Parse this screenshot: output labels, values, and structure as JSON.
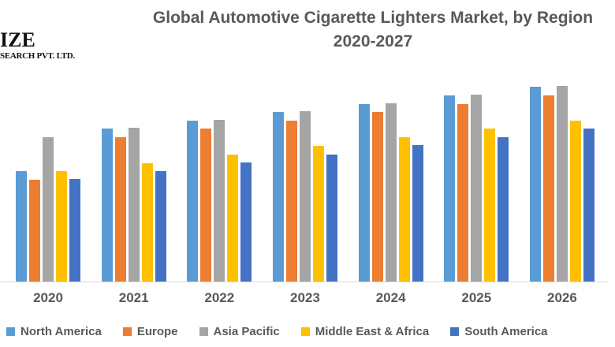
{
  "logo": {
    "line1": "IZE",
    "line2": "SEARCH PVT. LTD."
  },
  "title": {
    "line1": "Global Automotive Cigarette Lighters Market, by Region",
    "line2": "2020-2027",
    "color": "#595959"
  },
  "axis": {
    "line_color": "#d9d9d9",
    "label_color": "#595959"
  },
  "chart_data": {
    "type": "bar",
    "title": "Global Automotive Cigarette Lighters Market, by Region 2020-2027",
    "xlabel": "",
    "ylabel": "",
    "categories": [
      "2020",
      "2021",
      "2022",
      "2023",
      "2024",
      "2025",
      "2026"
    ],
    "series": [
      {
        "name": "North America",
        "color": "#5B9BD5",
        "values": [
          140,
          194,
          204,
          215,
          225,
          236,
          247
        ]
      },
      {
        "name": "Europe",
        "color": "#ED7D31",
        "values": [
          129,
          183,
          194,
          204,
          215,
          225,
          236
        ]
      },
      {
        "name": "Asia Pacific",
        "color": "#A5A5A5",
        "values": [
          183,
          195,
          205,
          216,
          226,
          237,
          248
        ]
      },
      {
        "name": "Middle East & Africa",
        "color": "#FFC000",
        "values": [
          140,
          150,
          161,
          172,
          183,
          194,
          204
        ]
      },
      {
        "name": "South America",
        "color": "#4472C4",
        "values": [
          130,
          140,
          151,
          161,
          173,
          183,
          194
        ]
      }
    ],
    "ylim": [
      0,
      260
    ],
    "value_units": "relative height (no y-axis scale shown in image)",
    "grid": false,
    "legend_position": "bottom"
  }
}
